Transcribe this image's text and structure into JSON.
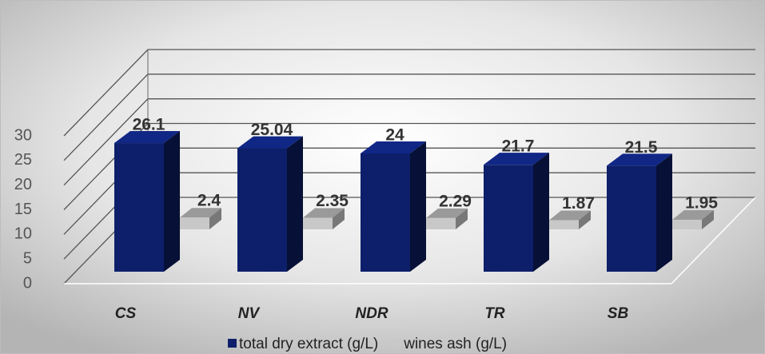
{
  "chart_data": {
    "type": "bar3d",
    "categories": [
      "CS",
      "NV",
      "NDR",
      "TR",
      "SB"
    ],
    "series": [
      {
        "name": "total dry extract (g/L)",
        "color": "#0d1f6b",
        "values": [
          26.1,
          25.04,
          24,
          21.7,
          21.5
        ]
      },
      {
        "name": "wines ash (g/L)",
        "color": "#c8c8c8",
        "values": [
          2.4,
          2.35,
          2.29,
          1.87,
          1.95
        ]
      }
    ],
    "ylim": [
      0,
      30
    ],
    "yticks": [
      0,
      5,
      10,
      15,
      20,
      25,
      30
    ],
    "grid": true,
    "legend": "bottom"
  }
}
